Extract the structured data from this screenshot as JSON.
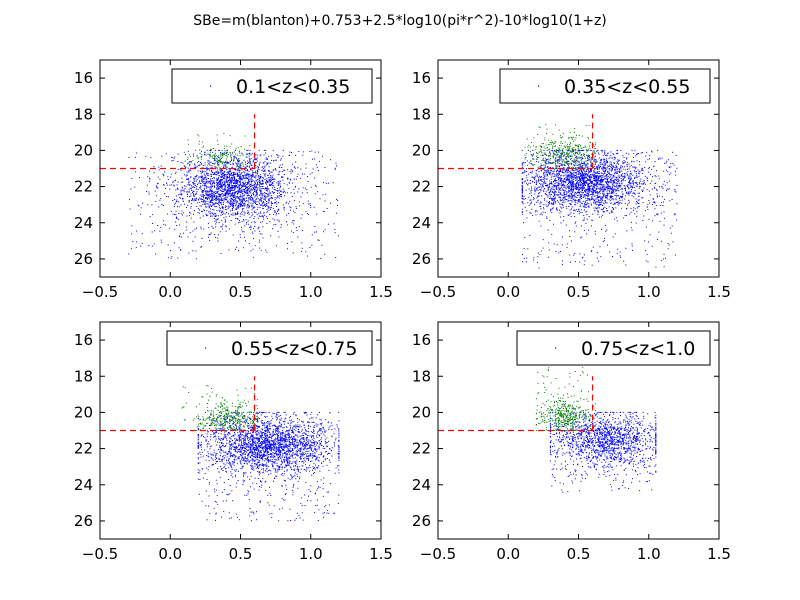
{
  "figure": {
    "title": "SBe=m(blanton)+0.753+2.5*log10(pi*r^2)-10*log10(1+z)"
  },
  "chart_data": [
    {
      "type": "scatter",
      "legend": "0.1<z<0.35",
      "legend_position": "top-right",
      "xlim": [
        -0.5,
        1.5
      ],
      "ylim": [
        27,
        15
      ],
      "y_inverted": true,
      "xticks": [
        "−0.5",
        "0.0",
        "0.5",
        "1.0",
        "1.5"
      ],
      "yticks": [
        "16",
        "18",
        "20",
        "22",
        "24",
        "26"
      ],
      "cut_lines": {
        "x": 0.6,
        "y": 21.0,
        "color": "#ff0000",
        "style": "dashed"
      },
      "series": [
        {
          "color": "#0000ff",
          "n": 2600,
          "center": [
            0.45,
            22.1
          ],
          "spread": [
            0.2,
            0.9
          ],
          "xrange": [
            -0.3,
            1.2
          ],
          "yrange": [
            20.0,
            26.0
          ]
        },
        {
          "color": "#008000",
          "n": 170,
          "center": [
            0.38,
            20.5
          ],
          "spread": [
            0.12,
            0.35
          ],
          "xrange": [
            0.1,
            0.62
          ],
          "yrange": [
            19.0,
            21.0
          ]
        }
      ]
    },
    {
      "type": "scatter",
      "legend": "0.35<z<0.55",
      "legend_position": "top-right",
      "xlim": [
        -0.5,
        1.5
      ],
      "ylim": [
        27,
        15
      ],
      "y_inverted": true,
      "xticks": [
        "−0.5",
        "0.0",
        "0.5",
        "1.0",
        "1.5"
      ],
      "yticks": [
        "16",
        "18",
        "20",
        "22",
        "24",
        "26"
      ],
      "cut_lines": {
        "x": 0.6,
        "y": 21.0,
        "color": "#ff0000",
        "style": "dashed"
      },
      "series": [
        {
          "color": "#0000ff",
          "n": 2700,
          "center": [
            0.55,
            21.8
          ],
          "spread": [
            0.22,
            0.8
          ],
          "xrange": [
            0.1,
            1.2
          ],
          "yrange": [
            20.0,
            26.5
          ]
        },
        {
          "color": "#008000",
          "n": 400,
          "center": [
            0.42,
            20.2
          ],
          "spread": [
            0.12,
            0.45
          ],
          "xrange": [
            0.12,
            0.62
          ],
          "yrange": [
            18.5,
            21.0
          ]
        }
      ]
    },
    {
      "type": "scatter",
      "legend": "0.55<z<0.75",
      "legend_position": "top-right",
      "xlim": [
        -0.5,
        1.5
      ],
      "ylim": [
        27,
        15
      ],
      "y_inverted": true,
      "xticks": [
        "−0.5",
        "0.0",
        "0.5",
        "1.0",
        "1.5"
      ],
      "yticks": [
        "16",
        "18",
        "20",
        "22",
        "24",
        "26"
      ],
      "cut_lines": {
        "x": 0.6,
        "y": 21.0,
        "color": "#ff0000",
        "style": "dashed"
      },
      "series": [
        {
          "color": "#0000ff",
          "n": 2600,
          "center": [
            0.7,
            21.8
          ],
          "spread": [
            0.22,
            0.8
          ],
          "xrange": [
            0.2,
            1.2
          ],
          "yrange": [
            20.0,
            26.0
          ]
        },
        {
          "color": "#008000",
          "n": 380,
          "center": [
            0.42,
            20.3
          ],
          "spread": [
            0.12,
            0.45
          ],
          "xrange": [
            0.05,
            0.62
          ],
          "yrange": [
            18.5,
            21.0
          ]
        }
      ]
    },
    {
      "type": "scatter",
      "legend": "0.75<z<1.0",
      "legend_position": "top-right",
      "xlim": [
        -0.5,
        1.5
      ],
      "ylim": [
        27,
        15
      ],
      "y_inverted": true,
      "xticks": [
        "−0.5",
        "0.0",
        "0.5",
        "1.0",
        "1.5"
      ],
      "yticks": [
        "16",
        "18",
        "20",
        "22",
        "24",
        "26"
      ],
      "cut_lines": {
        "x": 0.6,
        "y": 21.0,
        "color": "#ff0000",
        "style": "dashed"
      },
      "series": [
        {
          "color": "#0000ff",
          "n": 1500,
          "center": [
            0.7,
            21.5
          ],
          "spread": [
            0.2,
            0.7
          ],
          "xrange": [
            0.3,
            1.05
          ],
          "yrange": [
            20.0,
            24.5
          ]
        },
        {
          "color": "#008000",
          "n": 420,
          "center": [
            0.4,
            20.2
          ],
          "spread": [
            0.1,
            0.45
          ],
          "xrange": [
            0.2,
            0.62
          ],
          "yrange": [
            17.5,
            21.0
          ]
        }
      ]
    }
  ]
}
